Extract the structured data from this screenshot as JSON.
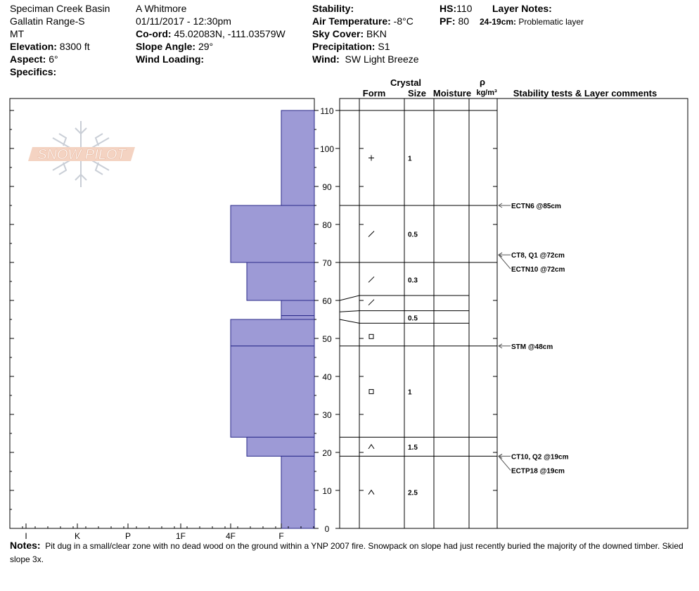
{
  "location": {
    "site": "Speciman Creek Basin",
    "range": "Gallatin Range-S",
    "state": "MT",
    "elevation_label": "Elevation:",
    "elevation": "8300 ft",
    "aspect_label": "Aspect:",
    "aspect": "6°",
    "specifics_label": "Specifics:"
  },
  "observation": {
    "observer": "A Whitmore",
    "datetime": "01/11/2017 - 12:30pm",
    "coord_label": "Co-ord:",
    "coord": "45.02083N, -111.03579W",
    "slope_label": "Slope Angle:",
    "slope": "29°",
    "wind_loading_label": "Wind Loading:"
  },
  "conditions": {
    "stability_label": "Stability:",
    "air_temp_label": "Air Temperature:",
    "air_temp": "-8°C",
    "sky_label": "Sky Cover:",
    "sky": "BKN",
    "precip_label": "Precipitation:",
    "precip": "S1",
    "wind_label": "Wind:",
    "wind": "SW Light Breeze"
  },
  "pit": {
    "hs_label": "HS:",
    "hs": "110",
    "pf_label": "PF:",
    "pf": "80",
    "layer_notes_label": "Layer Notes:",
    "layer_note_range": "24-19cm:",
    "layer_note_text": "Problematic layer"
  },
  "logo": {
    "text": "SNOW PILOT"
  },
  "notes": {
    "label": "Notes:",
    "text": "Pit dug in a small/clear zone with no dead wood on the ground within a YNP 2007 fire. Snowpack on slope had just recently buried the majority of the downed timber.  Skied slope 3x."
  },
  "colors": {
    "hardness_fill": "#9d9ad6",
    "hardness_stroke": "#2a2a8a",
    "arrow": "#555555"
  },
  "table_headers": {
    "crystal": "Crystal",
    "form": "Form",
    "size": "Size",
    "moisture": "Moisture",
    "rho": "ρ",
    "density": "kg/m³",
    "stability": "Stability tests & Layer comments"
  },
  "chart_data": {
    "type": "snow_profile",
    "y_axis": {
      "label": "",
      "unit": "cm",
      "range": [
        0,
        110
      ],
      "ticks": [
        0,
        10,
        20,
        30,
        40,
        50,
        60,
        70,
        80,
        90,
        100,
        110
      ]
    },
    "x_axis": {
      "label": "",
      "categories": [
        "I",
        "K",
        "P",
        "1F",
        "4F",
        "F"
      ]
    },
    "hardness_layers": [
      {
        "bottom": 85,
        "top": 110,
        "hardness": "F"
      },
      {
        "bottom": 70,
        "top": 85,
        "hardness": "4F"
      },
      {
        "bottom": 60,
        "top": 70,
        "hardness": "4F-"
      },
      {
        "bottom": 56,
        "top": 60,
        "hardness": "F"
      },
      {
        "bottom": 55,
        "top": 56,
        "hardness": "F"
      },
      {
        "bottom": 48,
        "top": 55,
        "hardness": "4F"
      },
      {
        "bottom": 24,
        "top": 48,
        "hardness": "4F"
      },
      {
        "bottom": 19,
        "top": 24,
        "hardness": "4F-"
      },
      {
        "bottom": 0,
        "top": 19,
        "hardness": "F"
      }
    ],
    "layer_boundaries": [
      110,
      85,
      70,
      48,
      24,
      19
    ],
    "sloped_boundaries": [
      {
        "left": 60,
        "right": 61.3
      },
      {
        "left": 57,
        "right": 57.3
      },
      {
        "left": 55,
        "right": 54.0
      }
    ],
    "crystals": [
      {
        "height": 97.5,
        "form": "+",
        "size": "1"
      },
      {
        "height": 77.5,
        "form": "/",
        "size": "0.5"
      },
      {
        "height": 65.5,
        "form": "/",
        "size": "0.3"
      },
      {
        "height": 59.5,
        "form": "/",
        "size": ""
      },
      {
        "height": 55.5,
        "form": "",
        "size": "0.5"
      },
      {
        "height": 50.5,
        "form": "□",
        "size": ""
      },
      {
        "height": 36,
        "form": "□",
        "size": "1"
      },
      {
        "height": 21.5,
        "form": "^",
        "size": "1.5"
      },
      {
        "height": 9.5,
        "form": "^",
        "size": "2.5"
      }
    ],
    "stability_tests": [
      {
        "height": 85,
        "label": "ECTN6 @85cm"
      },
      {
        "height": 72,
        "label": "CT8, Q1 @72cm"
      },
      {
        "height": 72,
        "label": "ECTN10 @72cm"
      },
      {
        "height": 48,
        "label": "STM @48cm"
      },
      {
        "height": 19,
        "label": "CT10, Q2 @19cm"
      },
      {
        "height": 19,
        "label": "ECTP18 @19cm"
      }
    ]
  }
}
